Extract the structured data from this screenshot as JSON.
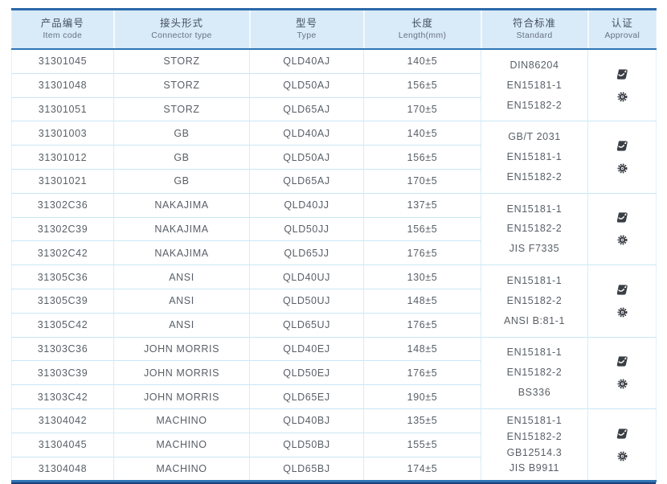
{
  "table": {
    "columns": [
      {
        "zh": "产品编号",
        "en": "Item code"
      },
      {
        "zh": "接头形式",
        "en": "Connector type"
      },
      {
        "zh": "型号",
        "en": "Type"
      },
      {
        "zh": "长度",
        "en": "Length(mm)"
      },
      {
        "zh": "符合标准",
        "en": "Standard"
      },
      {
        "zh": "认证",
        "en": "Approval"
      }
    ],
    "groups": [
      {
        "connector": "STORZ",
        "rows": [
          {
            "code": "31301045",
            "type": "QLD40AJ",
            "length": "140±5"
          },
          {
            "code": "31301048",
            "type": "QLD50AJ",
            "length": "156±5"
          },
          {
            "code": "31301051",
            "type": "QLD65AJ",
            "length": "170±5"
          }
        ],
        "standards": [
          "DIN86204",
          "EN15181-1",
          "EN15182-2"
        ],
        "approval_icons": [
          "type-approval-icon",
          "gear-badge-icon"
        ]
      },
      {
        "connector": "GB",
        "rows": [
          {
            "code": "31301003",
            "type": "QLD40AJ",
            "length": "140±5"
          },
          {
            "code": "31301012",
            "type": "QLD50AJ",
            "length": "156±5"
          },
          {
            "code": "31301021",
            "type": "QLD65AJ",
            "length": "170±5"
          }
        ],
        "standards": [
          "GB/T 2031",
          "EN15181-1",
          "EN15182-2"
        ],
        "approval_icons": [
          "type-approval-icon",
          "gear-badge-icon"
        ]
      },
      {
        "connector": "NAKAJIMA",
        "rows": [
          {
            "code": "31302C36",
            "type": "QLD40JJ",
            "length": "137±5"
          },
          {
            "code": "31302C39",
            "type": "QLD50JJ",
            "length": "156±5"
          },
          {
            "code": "31302C42",
            "type": "QLD65JJ",
            "length": "176±5"
          }
        ],
        "standards": [
          "EN15181-1",
          "EN15182-2",
          "JIS F7335"
        ],
        "approval_icons": [
          "type-approval-icon",
          "gear-badge-icon"
        ]
      },
      {
        "connector": "ANSI",
        "rows": [
          {
            "code": "31305C36",
            "type": "QLD40UJ",
            "length": "130±5"
          },
          {
            "code": "31305C39",
            "type": "QLD50UJ",
            "length": "148±5"
          },
          {
            "code": "31305C42",
            "type": "QLD65UJ",
            "length": "176±5"
          }
        ],
        "standards": [
          "EN15181-1",
          "EN15182-2",
          "ANSI B:81-1"
        ],
        "approval_icons": [
          "type-approval-icon",
          "gear-badge-icon"
        ]
      },
      {
        "connector": "JOHN MORRIS",
        "rows": [
          {
            "code": "31303C36",
            "type": "QLD40EJ",
            "length": "148±5"
          },
          {
            "code": "31303C39",
            "type": "QLD50EJ",
            "length": "176±5"
          },
          {
            "code": "31303C42",
            "type": "QLD65EJ",
            "length": "190±5"
          }
        ],
        "standards": [
          "EN15181-1",
          "EN15182-2",
          "BS336"
        ],
        "approval_icons": [
          "type-approval-icon",
          "gear-badge-icon"
        ]
      },
      {
        "connector": "MACHINO",
        "rows": [
          {
            "code": "31304042",
            "type": "QLD40BJ",
            "length": "135±5"
          },
          {
            "code": "31304045",
            "type": "QLD50BJ",
            "length": "155±5"
          },
          {
            "code": "31304048",
            "type": "QLD65BJ",
            "length": "174±5"
          }
        ],
        "standards": [
          "EN15181-1",
          "EN15182-2",
          "GB12514.3",
          "JIS B9911"
        ],
        "approval_icons": [
          "type-approval-icon",
          "gear-badge-icon"
        ]
      }
    ],
    "colors": {
      "accent_blue": "#2e75b6",
      "header_fill": "#d9eaf8",
      "grid_line": "#c9e6f5",
      "dark_rule": "#1f3f77",
      "icon_ink": "#3a3f45"
    }
  }
}
